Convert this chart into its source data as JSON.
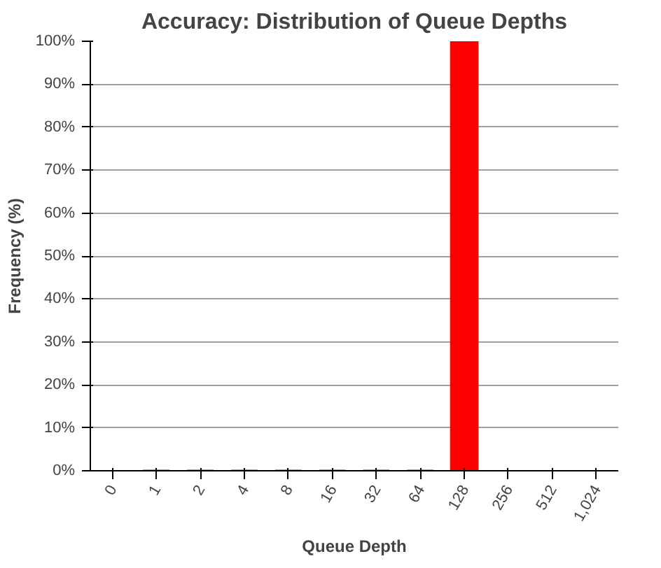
{
  "chart_data": {
    "type": "bar",
    "title": "Accuracy: Distribution of Queue Depths",
    "xlabel": "Queue Depth",
    "ylabel": "Frequency (%)",
    "categories": [
      "0",
      "1",
      "2",
      "4",
      "8",
      "16",
      "32",
      "64",
      "128",
      "256",
      "512",
      "1,024"
    ],
    "values": [
      null,
      0,
      0,
      0,
      0,
      0,
      0,
      0,
      100,
      null,
      null,
      null
    ],
    "color": "#ff0000",
    "ylim": [
      0,
      100
    ],
    "yticks": [
      {
        "value": 0,
        "label": "0%"
      },
      {
        "value": 10,
        "label": "10%"
      },
      {
        "value": 20,
        "label": "20%"
      },
      {
        "value": 30,
        "label": "30%"
      },
      {
        "value": 40,
        "label": "40%"
      },
      {
        "value": 50,
        "label": "50%"
      },
      {
        "value": 60,
        "label": "60%"
      },
      {
        "value": 70,
        "label": "70%"
      },
      {
        "value": 80,
        "label": "80%"
      },
      {
        "value": 90,
        "label": "90%"
      },
      {
        "value": 100,
        "label": "100%"
      }
    ],
    "grid": "y"
  }
}
